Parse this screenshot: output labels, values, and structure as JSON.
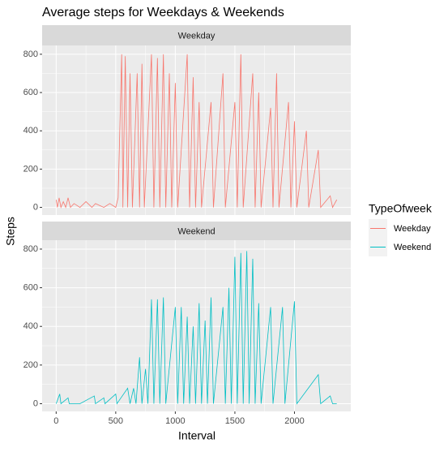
{
  "chart_data": {
    "type": "line",
    "title": "Average steps for Weekdays & Weekends",
    "xlabel": "Interval",
    "ylabel": "Steps",
    "legend_title": "TypeOfweek",
    "legend": "right",
    "grid": true,
    "xlim": [
      -117.75,
      2472.75
    ],
    "xticks": [
      0,
      500,
      1000,
      1500,
      2000
    ],
    "ylim": [
      -40,
      846
    ],
    "yticks": [
      0,
      200,
      400,
      600,
      800
    ],
    "series": [
      {
        "name": "Weekday",
        "color": "#F8766D",
        "x": [
          0,
          10,
          25,
          40,
          60,
          80,
          100,
          120,
          150,
          200,
          250,
          300,
          330,
          400,
          450,
          500,
          520,
          550,
          560,
          580,
          600,
          620,
          640,
          680,
          700,
          720,
          740,
          800,
          820,
          850,
          870,
          900,
          920,
          950,
          970,
          1000,
          1020,
          1100,
          1120,
          1150,
          1170,
          1200,
          1220,
          1300,
          1320,
          1400,
          1420,
          1500,
          1520,
          1550,
          1570,
          1650,
          1670,
          1700,
          1720,
          1800,
          1820,
          1850,
          1870,
          1950,
          1970,
          2000,
          2020,
          2100,
          2120,
          2200,
          2220,
          2300,
          2320,
          2355
        ],
        "values": [
          40,
          0,
          50,
          0,
          30,
          0,
          50,
          0,
          20,
          0,
          30,
          0,
          20,
          0,
          20,
          0,
          50,
          800,
          0,
          790,
          0,
          700,
          0,
          700,
          0,
          750,
          0,
          800,
          0,
          780,
          0,
          800,
          0,
          700,
          0,
          650,
          0,
          800,
          0,
          680,
          0,
          550,
          0,
          550,
          0,
          700,
          0,
          550,
          0,
          800,
          0,
          700,
          0,
          600,
          0,
          520,
          0,
          700,
          0,
          550,
          0,
          450,
          0,
          400,
          0,
          300,
          0,
          60,
          0,
          40
        ]
      },
      {
        "name": "Weekend",
        "color": "#00BFC4",
        "x": [
          0,
          30,
          40,
          100,
          110,
          200,
          320,
          330,
          400,
          410,
          500,
          510,
          600,
          620,
          650,
          670,
          700,
          720,
          750,
          770,
          800,
          820,
          850,
          870,
          900,
          920,
          1000,
          1020,
          1050,
          1070,
          1100,
          1120,
          1150,
          1170,
          1200,
          1220,
          1250,
          1270,
          1300,
          1320,
          1400,
          1420,
          1450,
          1470,
          1500,
          1520,
          1550,
          1570,
          1600,
          1620,
          1650,
          1670,
          1700,
          1720,
          1800,
          1820,
          1900,
          1920,
          2000,
          2020,
          2200,
          2220,
          2300,
          2320,
          2355
        ],
        "values": [
          0,
          50,
          0,
          30,
          0,
          0,
          40,
          0,
          30,
          0,
          50,
          0,
          80,
          0,
          80,
          0,
          240,
          0,
          180,
          0,
          540,
          0,
          540,
          0,
          550,
          0,
          500,
          0,
          500,
          0,
          450,
          0,
          400,
          0,
          520,
          0,
          430,
          0,
          550,
          0,
          500,
          0,
          600,
          0,
          760,
          0,
          780,
          0,
          790,
          0,
          750,
          0,
          520,
          0,
          500,
          0,
          500,
          0,
          530,
          0,
          150,
          0,
          40,
          0,
          0
        ]
      }
    ]
  }
}
